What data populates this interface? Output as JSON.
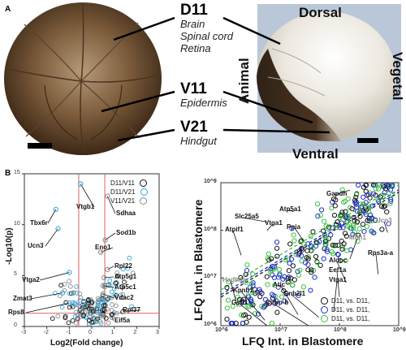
{
  "panel_a": {
    "letter": "A",
    "blastomeres": [
      {
        "name": "D11",
        "tissues": [
          "Brain",
          "Spinal cord",
          "Retina"
        ]
      },
      {
        "name": "V11",
        "tissues": [
          "Epidermis"
        ]
      },
      {
        "name": "V21",
        "tissues": [
          "Hindgut"
        ]
      }
    ],
    "orientation": {
      "top": "Dorsal",
      "bottom": "Ventral",
      "left": "Animal",
      "right": "Vegetal"
    }
  },
  "panel_b": {
    "letter": "B"
  },
  "colors": {
    "black": "#111111",
    "blue": "#1f2fd0",
    "cyan": "#35a7d7",
    "green": "#3ac23a",
    "grey": "#8a8a8a",
    "red": "#e06060"
  },
  "chart_data": [
    {
      "type": "scatter",
      "title": "",
      "xlabel": "Log2(Fold change)",
      "ylabel": "-Log10(p)",
      "xlim": [
        -3,
        3
      ],
      "ylim": [
        0,
        15
      ],
      "x_ticks": [
        "-3",
        "-2",
        "-1",
        "0",
        "1",
        "2",
        "3"
      ],
      "y_ticks": [
        "0",
        "5",
        "10",
        "15"
      ],
      "legend": [
        "D11/V11",
        "D11/V21",
        "V11/V21"
      ],
      "legend_position": "top-right",
      "threshold_lines": {
        "x": [
          -0.58,
          0.58
        ],
        "y": 1.3
      },
      "labeled_points": [
        {
          "gene": "Vtgb1",
          "x": -0.5,
          "y": 14.0
        },
        {
          "gene": "Tbx6r",
          "x": -1.6,
          "y": 11.5
        },
        {
          "gene": "Sdhaa",
          "x": 0.7,
          "y": 12.8
        },
        {
          "gene": "Ucn3",
          "x": -1.5,
          "y": 9.6
        },
        {
          "gene": "Sod1b",
          "x": 0.6,
          "y": 8.5
        },
        {
          "gene": "Eno1",
          "x": 0.4,
          "y": 7.3
        },
        {
          "gene": "Vtga2",
          "x": -1.0,
          "y": 5.3
        },
        {
          "gene": "Rpl22",
          "x": 0.7,
          "y": 5.6
        },
        {
          "gene": "Atp5g1",
          "x": 0.55,
          "y": 4.8
        },
        {
          "gene": "Atp5c1",
          "x": 0.5,
          "y": 4.0
        },
        {
          "gene": "Zmat3",
          "x": -1.3,
          "y": 3.3
        },
        {
          "gene": "Vdac2",
          "x": 0.5,
          "y": 3.2
        },
        {
          "gene": "Rps8",
          "x": -1.0,
          "y": 2.3
        },
        {
          "gene": "Rpl37",
          "x": 1.4,
          "y": 1.5
        },
        {
          "gene": "Eif5a",
          "x": 0.9,
          "y": 0.9
        }
      ]
    },
    {
      "type": "scatter",
      "title": "",
      "xlabel": "LFQ Int. in Blastomere",
      "ylabel": "LFQ Int. in Blastomere",
      "scale": "log",
      "xlim": [
        1000000,
        1000000000
      ],
      "ylim": [
        1000000,
        1000000000
      ],
      "x_ticks": [
        "10^6",
        "10^7",
        "10^8",
        "10^9"
      ],
      "y_ticks": [
        "10^6",
        "10^7",
        "10^8",
        "10^9"
      ],
      "series": [
        {
          "name": "D11, vs. D11,",
          "color": "black"
        },
        {
          "name": "D11, vs. D11,",
          "color": "blue"
        },
        {
          "name": "D11, vs. D11,",
          "color": "green"
        }
      ],
      "legend_position": "bottom-right",
      "labeled_points": [
        {
          "gene": "Gapdh",
          "x": 150000000,
          "y": 700000000
        },
        {
          "gene": "Atp5a1",
          "x": 17000000,
          "y": 250000000
        },
        {
          "gene": "Slc25a5",
          "x": 6000000,
          "y": 150000000
        },
        {
          "gene": "Vtga1",
          "x": 6000000,
          "y": 100000000
        },
        {
          "gene": "Ppia",
          "x": 25000000,
          "y": 60000000
        },
        {
          "gene": "Atpif1",
          "x": 2200000,
          "y": 30000000
        },
        {
          "gene": "Ucn3",
          "x": 650000000,
          "y": 90000000
        },
        {
          "gene": "Mdh1",
          "x": 150000000,
          "y": 25000000
        },
        {
          "gene": "Rps3a-a",
          "x": 450000000,
          "y": 12000000
        },
        {
          "gene": "Aldoc",
          "x": 130000000,
          "y": 8000000
        },
        {
          "gene": "Eef1a",
          "x": 100000000,
          "y": 4000000
        },
        {
          "gene": "Vtga1",
          "x": 80000000,
          "y": 2000000
        },
        {
          "gene": "Hadhaa",
          "x": 1900000,
          "y": 2500000
        },
        {
          "gene": "Kpnb1",
          "x": 5500000,
          "y": 1300000
        },
        {
          "gene": "Atic",
          "x": 20000000,
          "y": 1700000
        },
        {
          "gene": "Gnb2l1",
          "x": 45000000,
          "y": 1500000
        },
        {
          "gene": "Gstt1",
          "x": 6000000,
          "y": 1000000
        },
        {
          "gene": "Cirbp-b",
          "x": 30000000,
          "y": 1000000
        }
      ]
    }
  ]
}
